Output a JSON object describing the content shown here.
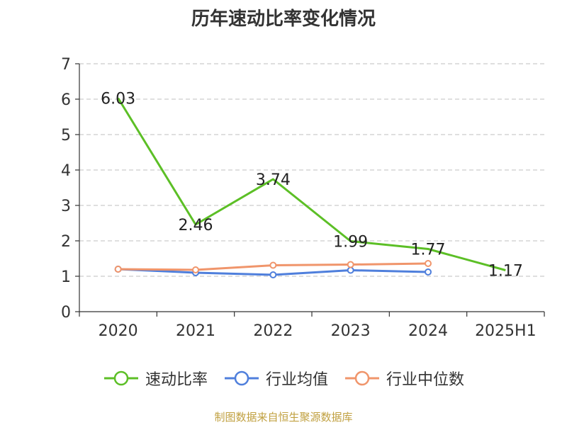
{
  "chart_data": {
    "type": "line",
    "title": "历年速动比率变化情况",
    "categories": [
      "2020",
      "2021",
      "2022",
      "2023",
      "2024",
      "2025H1"
    ],
    "yticks": [
      "0",
      "1",
      "2",
      "3",
      "4",
      "5",
      "6",
      "7"
    ],
    "ylim": [
      0,
      7
    ],
    "grid": true,
    "legend_position": "bottom",
    "series": [
      {
        "name": "速动比率",
        "color": "#5cbf26",
        "values": [
          6.03,
          2.46,
          3.74,
          1.99,
          1.77,
          1.17
        ],
        "labels": [
          "6.03",
          "2.46",
          "3.74",
          "1.99",
          "1.77",
          "1.17"
        ],
        "markers": false
      },
      {
        "name": "行业均值",
        "color": "#4f7fdc",
        "values": [
          1.2,
          1.1,
          1.04,
          1.17,
          1.12,
          null
        ],
        "markers": true
      },
      {
        "name": "行业中位数",
        "color": "#f0956b",
        "values": [
          1.2,
          1.18,
          1.31,
          1.33,
          1.36,
          null
        ],
        "markers": true
      }
    ]
  },
  "footer": {
    "source": "制图数据来自恒生聚源数据库"
  }
}
